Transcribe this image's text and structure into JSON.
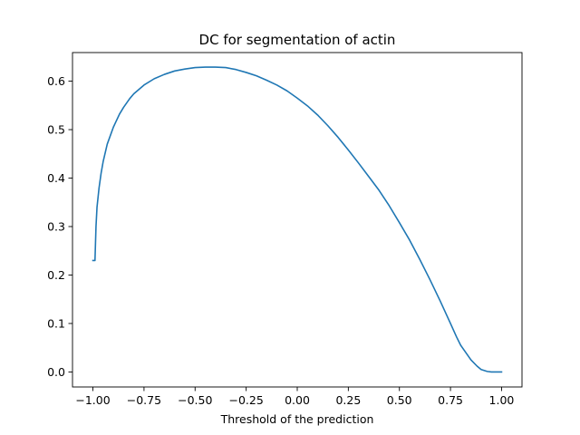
{
  "chart_data": {
    "type": "line",
    "title": "DC for segmentation of actin",
    "xlabel": "Threshold of the prediction",
    "ylabel": "",
    "xlim": [
      -1.1,
      1.1
    ],
    "ylim": [
      -0.031,
      0.659
    ],
    "grid": false,
    "line_color": "#1f77b4",
    "xticks": [
      -1.0,
      -0.75,
      -0.5,
      -0.25,
      0.0,
      0.25,
      0.5,
      0.75,
      1.0
    ],
    "xtick_labels": [
      "−1.00",
      "−0.75",
      "−0.50",
      "−0.25",
      "0.00",
      "0.25",
      "0.50",
      "0.75",
      "1.00"
    ],
    "yticks": [
      0.0,
      0.1,
      0.2,
      0.3,
      0.4,
      0.5,
      0.6
    ],
    "ytick_labels": [
      "0.0",
      "0.1",
      "0.2",
      "0.3",
      "0.4",
      "0.5",
      "0.6"
    ],
    "series": [
      {
        "x": [
          -1.0,
          -0.99,
          -0.985,
          -0.98,
          -0.97,
          -0.96,
          -0.95,
          -0.93,
          -0.9,
          -0.87,
          -0.85,
          -0.82,
          -0.8,
          -0.75,
          -0.7,
          -0.65,
          -0.6,
          -0.55,
          -0.5,
          -0.45,
          -0.4,
          -0.35,
          -0.3,
          -0.25,
          -0.2,
          -0.15,
          -0.1,
          -0.05,
          0.0,
          0.05,
          0.1,
          0.15,
          0.2,
          0.25,
          0.3,
          0.35,
          0.4,
          0.45,
          0.5,
          0.55,
          0.6,
          0.65,
          0.7,
          0.75,
          0.78,
          0.8,
          0.85,
          0.88,
          0.9,
          0.93,
          0.95,
          1.0
        ],
        "y": [
          0.23,
          0.23,
          0.3,
          0.34,
          0.38,
          0.41,
          0.434,
          0.47,
          0.505,
          0.532,
          0.546,
          0.564,
          0.574,
          0.592,
          0.605,
          0.614,
          0.621,
          0.625,
          0.628,
          0.629,
          0.629,
          0.628,
          0.624,
          0.618,
          0.611,
          0.602,
          0.592,
          0.58,
          0.565,
          0.549,
          0.53,
          0.508,
          0.484,
          0.458,
          0.431,
          0.403,
          0.375,
          0.343,
          0.308,
          0.272,
          0.232,
          0.19,
          0.146,
          0.1,
          0.072,
          0.055,
          0.025,
          0.012,
          0.005,
          0.001,
          0.0,
          0.0
        ]
      }
    ]
  }
}
